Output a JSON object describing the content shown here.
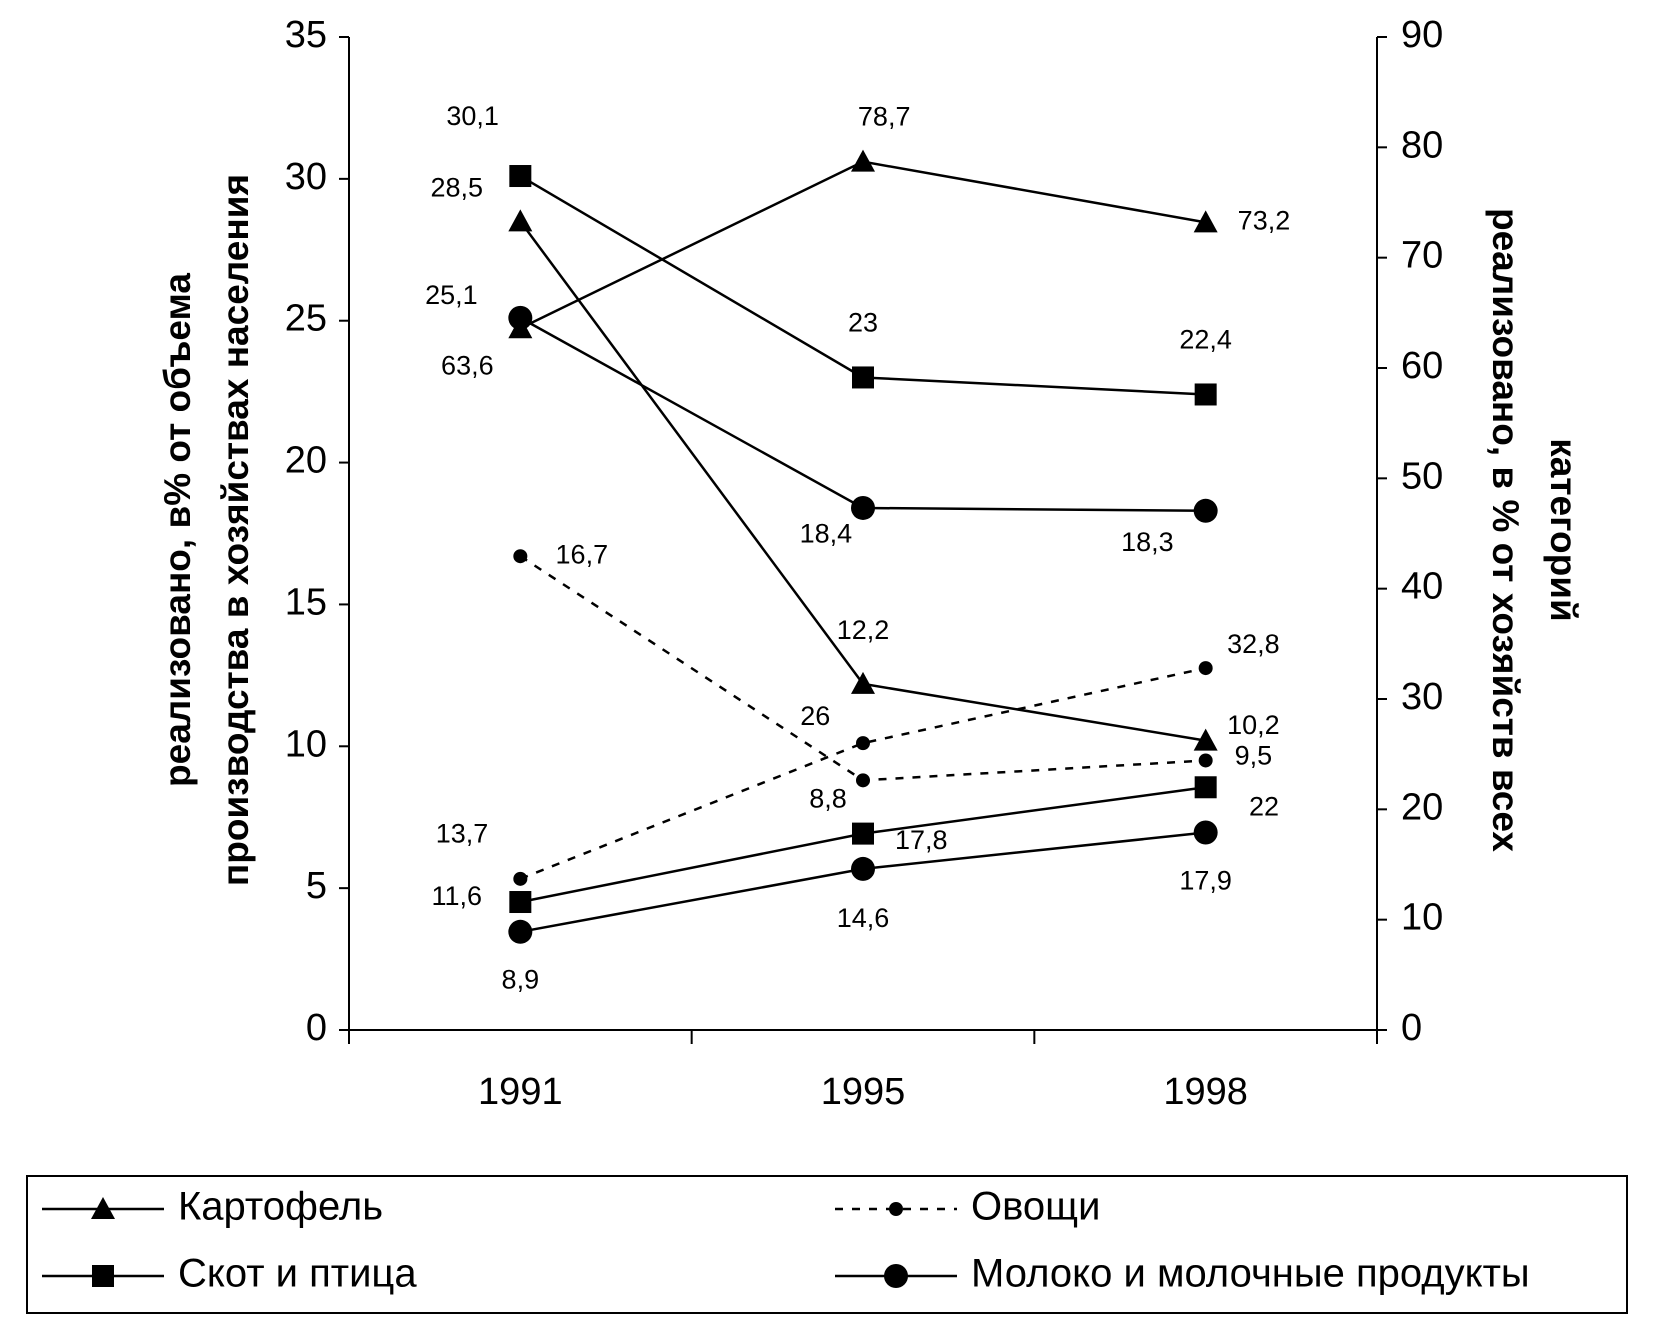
{
  "chart_data": {
    "type": "line",
    "y_label": [
      "реализовано, в% от объема",
      "производства в хозяйствах населения"
    ],
    "y2_label": [
      "реализовано, в % от хозяйств всех",
      "категорий"
    ],
    "categories": [
      "1991",
      "1995",
      "1998"
    ],
    "ylim": [
      0,
      35
    ],
    "yticks": [
      0,
      5,
      10,
      15,
      20,
      25,
      30,
      35
    ],
    "y2lim": [
      0,
      90
    ],
    "y2ticks": [
      0,
      10,
      20,
      30,
      40,
      50,
      60,
      70,
      80,
      90
    ],
    "color": "#000000",
    "series": [
      {
        "name": "Картофель",
        "marker": "triangle",
        "dash": false,
        "values": [
          28.5,
          12.2,
          10.2
        ],
        "value_labels": [
          "28,5",
          "12,2",
          "10,2"
        ],
        "y2_values": [
          63.6,
          78.7,
          73.2
        ],
        "y2_value_labels": [
          "63,6",
          "78,7",
          "73,2"
        ]
      },
      {
        "name": "Овощи",
        "marker": "small-circle",
        "dash": true,
        "values": [
          16.7,
          8.8,
          9.5
        ],
        "value_labels": [
          "16,7",
          "8,8",
          "9,5"
        ],
        "y2_values": [
          13.7,
          26,
          32.8
        ],
        "y2_value_labels": [
          "13,7",
          "26",
          "32,8"
        ]
      },
      {
        "name": "Скот и птица",
        "marker": "square",
        "dash": false,
        "values": [
          30.1,
          23,
          22.4
        ],
        "value_labels": [
          "30,1",
          "23",
          "22,4"
        ],
        "y2_values": [
          11.6,
          17.8,
          22
        ],
        "y2_value_labels": [
          "11,6",
          "17,8",
          "22"
        ]
      },
      {
        "name": "Молоко и молочные продукты",
        "marker": "circle",
        "dash": false,
        "values": [
          25.1,
          18.4,
          18.3
        ],
        "value_labels": [
          "25,1",
          "18,4",
          "18,3"
        ],
        "y2_values": [
          8.9,
          14.6,
          17.9
        ],
        "y2_value_labels": [
          "8,9",
          "14,6",
          "17,9"
        ]
      }
    ]
  }
}
